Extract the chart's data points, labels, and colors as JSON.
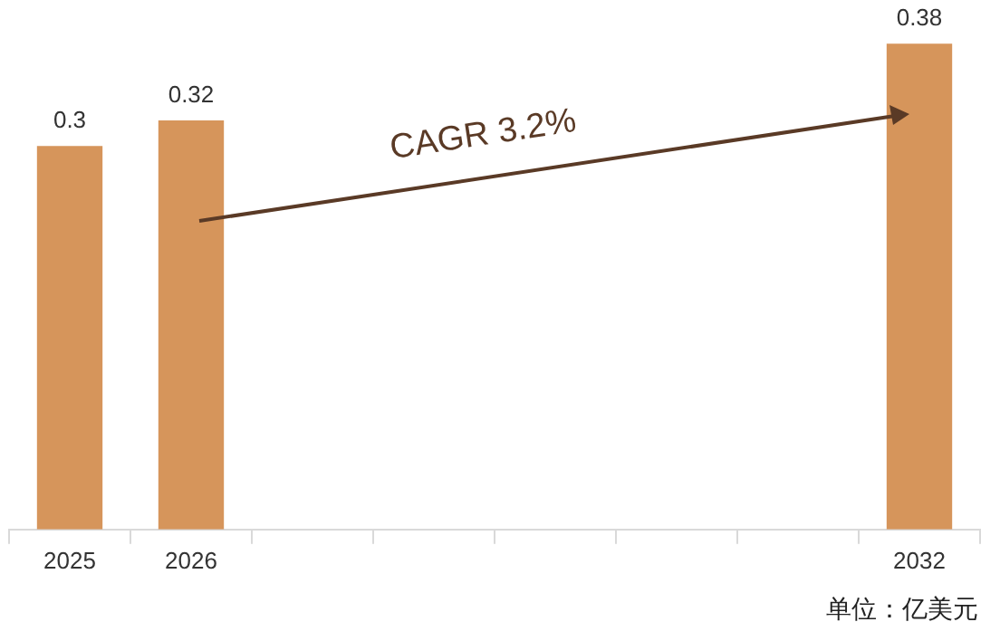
{
  "chart_data": {
    "type": "bar",
    "categories": [
      "2025",
      "2026",
      null,
      null,
      null,
      null,
      null,
      "2032"
    ],
    "values": [
      0.3,
      0.32,
      null,
      null,
      null,
      null,
      null,
      0.38
    ],
    "color": "#d6955b",
    "data_labels": true,
    "grid": false,
    "legend": false,
    "tick_labels": "x",
    "annotations": [
      "CAGR 3.2%",
      "单位：亿美元"
    ]
  }
}
